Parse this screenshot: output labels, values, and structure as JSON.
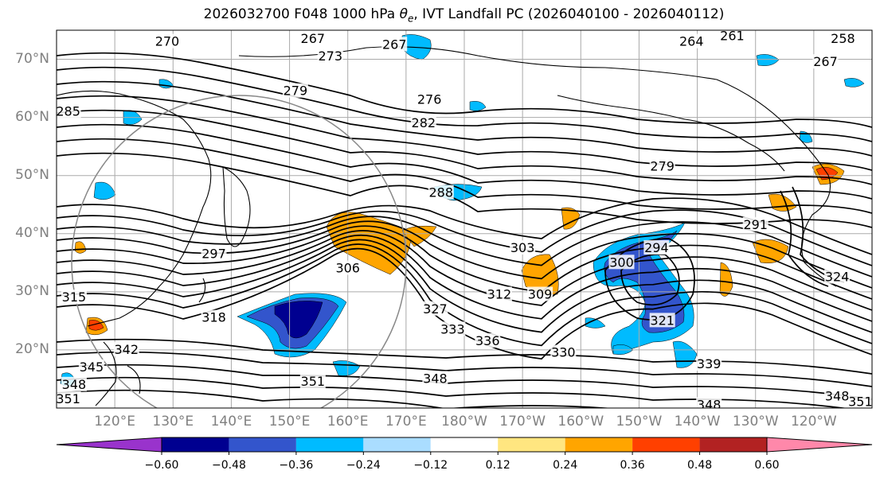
{
  "title": {
    "prefix": "2026032700 F048 1000 hPa ",
    "symbol": "θ",
    "symbol_sub": "e",
    "suffix": ", IVT Landfall PC (2026040100 - 2026040112)"
  },
  "map": {
    "type": "contour-map",
    "projection": "cylindrical",
    "lon_range_east": [
      110,
      250
    ],
    "lat_range": [
      10,
      75
    ],
    "gridlines": true,
    "lat_labels": [
      "70°N",
      "60°N",
      "50°N",
      "40°N",
      "30°N",
      "20°N"
    ],
    "lat_values": [
      70,
      60,
      50,
      40,
      30,
      20
    ],
    "lon_labels": [
      "120°E",
      "130°E",
      "140°E",
      "150°E",
      "160°E",
      "170°E",
      "180°W",
      "170°W",
      "160°W",
      "150°W",
      "140°W",
      "130°W",
      "120°W"
    ],
    "lon_values_east": [
      120,
      130,
      140,
      150,
      160,
      170,
      180,
      190,
      200,
      210,
      220,
      230,
      240
    ],
    "contour_variable": "theta-e (K)",
    "contour_labels": [
      {
        "text": "270",
        "lon": 129,
        "lat": 73
      },
      {
        "text": "267",
        "lon": 154,
        "lat": 73.5
      },
      {
        "text": "267",
        "lon": 168,
        "lat": 72.5
      },
      {
        "text": "264",
        "lon": 219,
        "lat": 73
      },
      {
        "text": "261",
        "lon": 226,
        "lat": 74
      },
      {
        "text": "258",
        "lon": 245,
        "lat": 73.5
      },
      {
        "text": "273",
        "lon": 157,
        "lat": 70.5
      },
      {
        "text": "267",
        "lon": 242,
        "lat": 69.5
      },
      {
        "text": "285",
        "lon": 112,
        "lat": 61
      },
      {
        "text": "276",
        "lon": 174,
        "lat": 63
      },
      {
        "text": "282",
        "lon": 173,
        "lat": 59
      },
      {
        "text": "279",
        "lon": 151,
        "lat": 64.5
      },
      {
        "text": "279",
        "lon": 214,
        "lat": 51.5
      },
      {
        "text": "288",
        "lon": 176,
        "lat": 47
      },
      {
        "text": "291",
        "lon": 230,
        "lat": 41.5
      },
      {
        "text": "294",
        "lon": 213,
        "lat": 37.5
      },
      {
        "text": "300",
        "lon": 207,
        "lat": 35
      },
      {
        "text": "297",
        "lon": 137,
        "lat": 36.5
      },
      {
        "text": "303",
        "lon": 190,
        "lat": 37.5
      },
      {
        "text": "306",
        "lon": 160,
        "lat": 34
      },
      {
        "text": "309",
        "lon": 193,
        "lat": 29.5
      },
      {
        "text": "312",
        "lon": 186,
        "lat": 29.5
      },
      {
        "text": "315",
        "lon": 113,
        "lat": 29
      },
      {
        "text": "318",
        "lon": 137,
        "lat": 25.5
      },
      {
        "text": "321",
        "lon": 214,
        "lat": 25
      },
      {
        "text": "324",
        "lon": 244,
        "lat": 32.5
      },
      {
        "text": "327",
        "lon": 175,
        "lat": 27
      },
      {
        "text": "330",
        "lon": 197,
        "lat": 19.5
      },
      {
        "text": "333",
        "lon": 178,
        "lat": 23.5
      },
      {
        "text": "336",
        "lon": 184,
        "lat": 21.5
      },
      {
        "text": "339",
        "lon": 222,
        "lat": 17.5
      },
      {
        "text": "342",
        "lon": 122,
        "lat": 20
      },
      {
        "text": "345",
        "lon": 116,
        "lat": 17
      },
      {
        "text": "348",
        "lon": 113,
        "lat": 14
      },
      {
        "text": "348",
        "lon": 175,
        "lat": 15
      },
      {
        "text": "348",
        "lon": 222,
        "lat": 10.5
      },
      {
        "text": "351",
        "lon": 112,
        "lat": 11.5
      },
      {
        "text": "351",
        "lon": 154,
        "lat": 14.5
      },
      {
        "text": "351",
        "lon": 248,
        "lat": 11
      },
      {
        "text": "348",
        "lon": 244,
        "lat": 12
      }
    ],
    "shaded_variable": "IVT landfall PC"
  },
  "colorbar": {
    "tick_labels": [
      "−0.60",
      "−0.48",
      "−0.36",
      "−0.24",
      "−0.12",
      "0.12",
      "0.24",
      "0.36",
      "0.48",
      "0.60"
    ],
    "tick_values": [
      -0.6,
      -0.48,
      -0.36,
      -0.24,
      -0.12,
      0.12,
      0.24,
      0.36,
      0.48,
      0.6
    ],
    "colors": [
      "#9933cc",
      "#000090",
      "#3355cc",
      "#00bbff",
      "#aaddff",
      "#ffffff",
      "#ffe680",
      "#ffa500",
      "#ff4000",
      "#b22222",
      "#ff88aa"
    ]
  }
}
